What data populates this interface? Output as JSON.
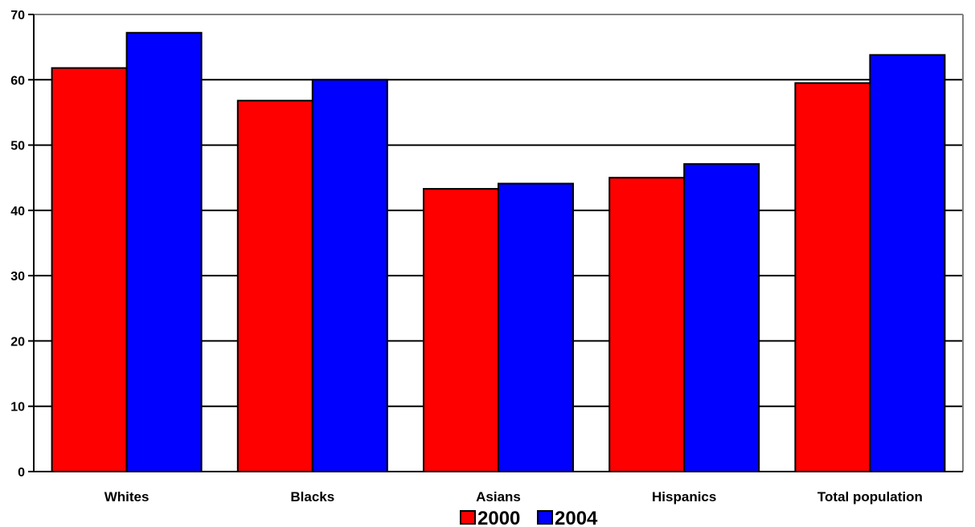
{
  "chart_data": {
    "type": "bar",
    "title": "",
    "xlabel": "",
    "ylabel": "",
    "categories": [
      "Whites",
      "Blacks",
      "Asians",
      "Hispanics",
      "Total population"
    ],
    "series": [
      {
        "name": "2000",
        "color": "#ff0000",
        "values": [
          61.8,
          56.8,
          43.3,
          45.0,
          59.5
        ]
      },
      {
        "name": "2004",
        "color": "#0000ff",
        "values": [
          67.2,
          60.0,
          44.1,
          47.1,
          63.8
        ]
      }
    ],
    "ylim": [
      0,
      70
    ],
    "yticks": [
      "0",
      "10",
      "20",
      "30",
      "40",
      "50",
      "60",
      "70"
    ],
    "grid": true,
    "legend": "bottom-center"
  }
}
